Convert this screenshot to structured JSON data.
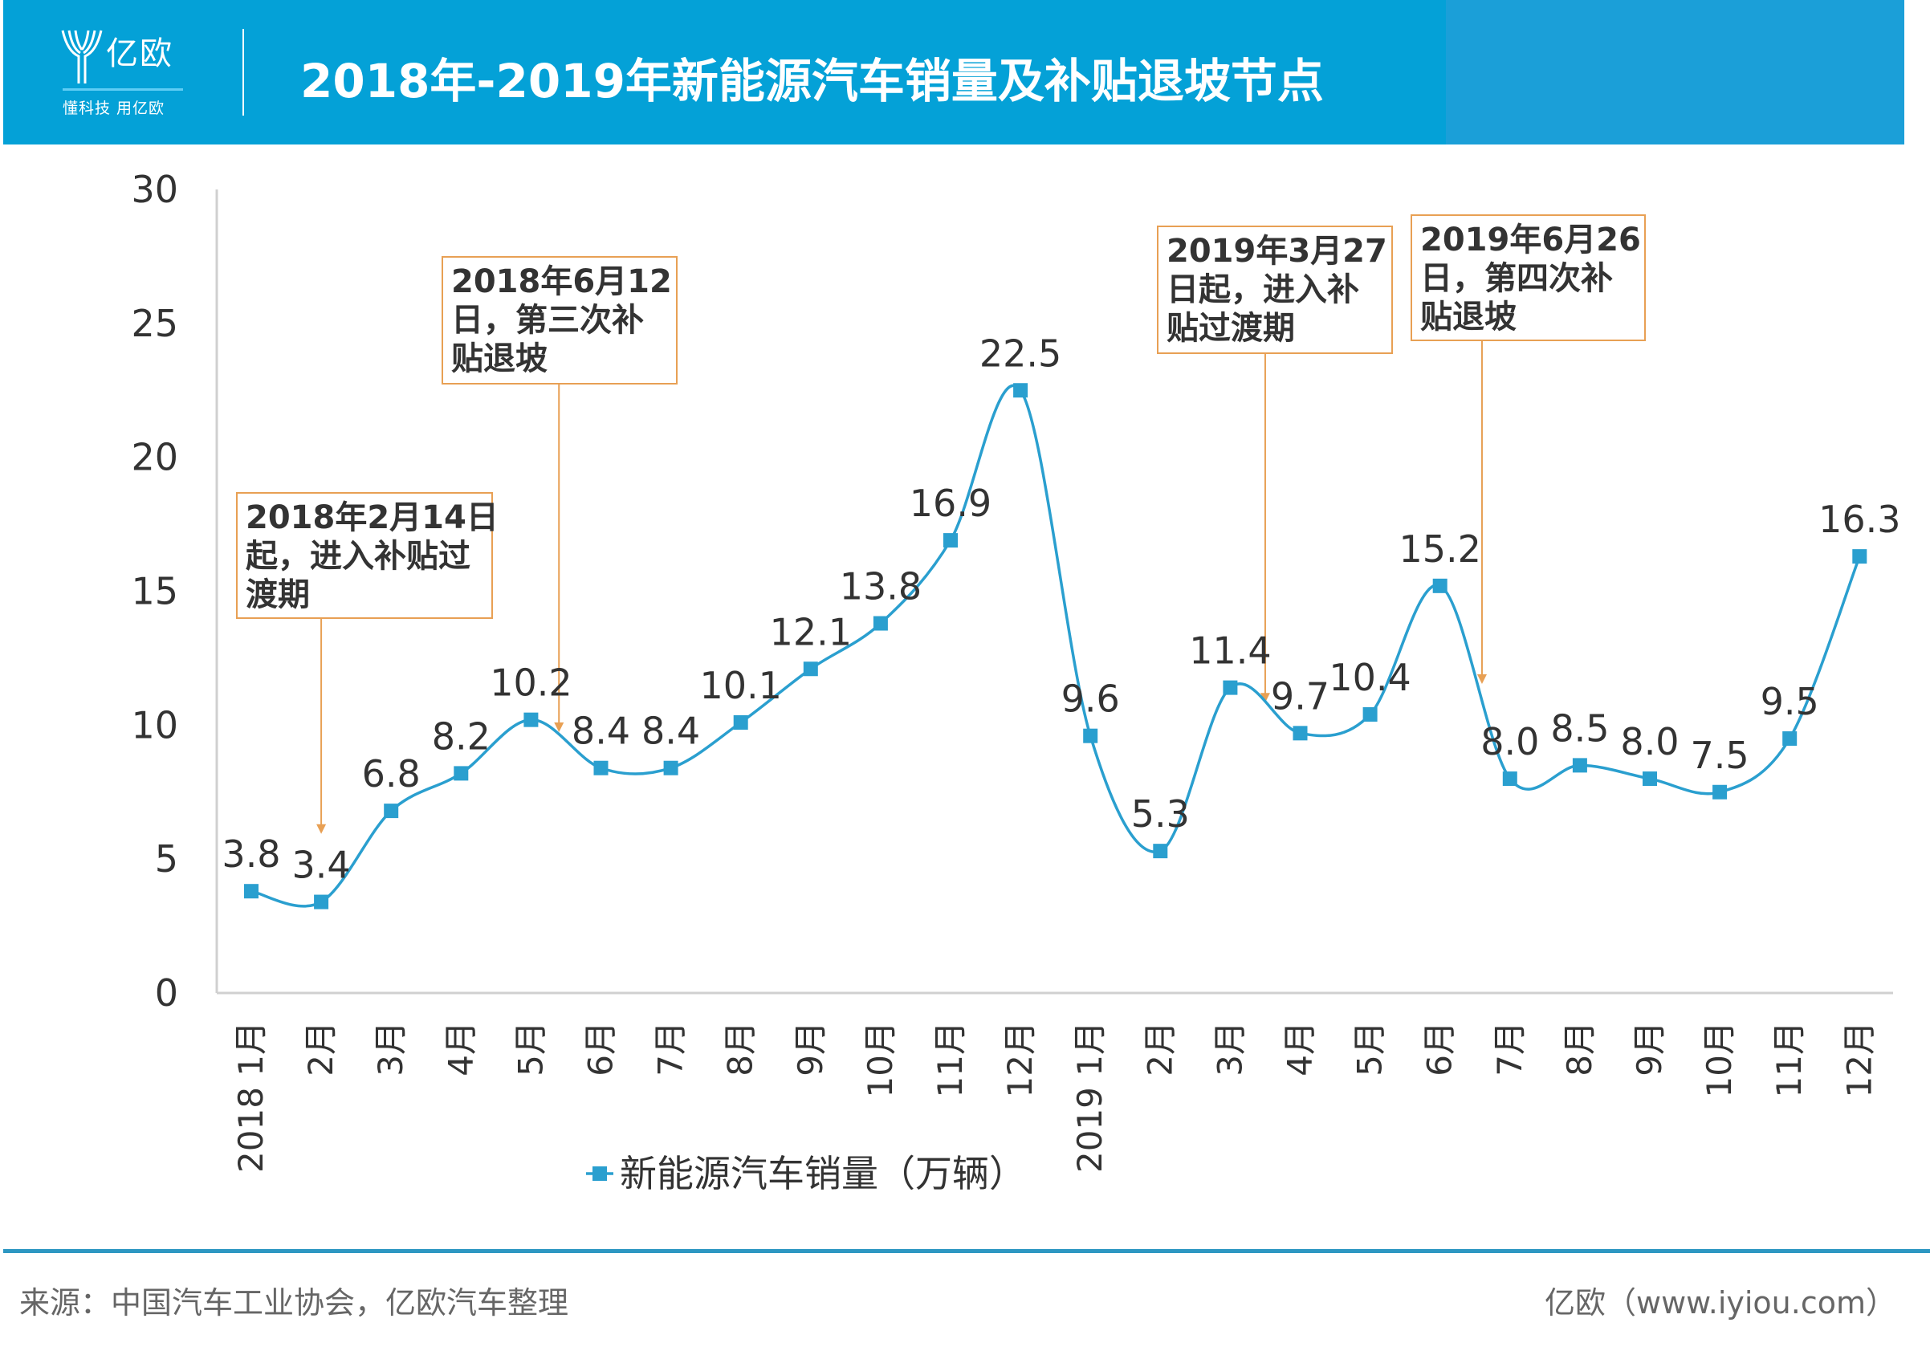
{
  "header": {
    "logo_name": "亿欧",
    "logo_slogan": "懂科技 用亿欧",
    "title": "2018年-2019年新能源汽车销量及补贴退坡节点"
  },
  "colors": {
    "header": "#04a1d7",
    "line": "#2a9fcf",
    "annotation_border": "#e8a054",
    "arrow": "#e8a054"
  },
  "chart_data": {
    "type": "line",
    "title": "2018年-2019年新能源汽车销量及补贴退坡节点",
    "categories": [
      "2018 1月",
      "2月",
      "3月",
      "4月",
      "5月",
      "6月",
      "7月",
      "8月",
      "9月",
      "10月",
      "11月",
      "12月",
      "2019 1月",
      "2月",
      "3月",
      "4月",
      "5月",
      "6月",
      "7月",
      "8月",
      "9月",
      "10月",
      "11月",
      "12月"
    ],
    "series": [
      {
        "name": "新能源汽车销量（万辆）",
        "values": [
          3.8,
          3.4,
          6.8,
          8.2,
          10.2,
          8.4,
          8.4,
          10.1,
          12.1,
          13.8,
          16.9,
          22.5,
          9.6,
          5.3,
          11.4,
          9.7,
          10.4,
          15.2,
          8.0,
          8.5,
          8.0,
          7.5,
          9.5,
          16.3
        ]
      }
    ],
    "data_labels": [
      "3.8",
      "3.4",
      "6.8",
      "8.2",
      "10.2",
      "8.4",
      "8.4",
      "10.1",
      "12.1",
      "13.8",
      "16.9",
      "22.5",
      "9.6",
      "5.3",
      "11.4",
      "9.7",
      "10.4",
      "15.2",
      "8.0",
      "8.5",
      "8.0",
      "7.5",
      "9.5",
      "16.3"
    ],
    "ylim": [
      0,
      30
    ],
    "yticks": [
      "0",
      "5",
      "10",
      "15",
      "20",
      "25",
      "30"
    ],
    "xlabel": "",
    "ylabel": "",
    "grid": false,
    "legend": {
      "label": "新能源汽车销量（万辆）",
      "placement": "bottom"
    },
    "annotations": [
      {
        "lines": [
          "2018年2月14日",
          "起，进入补贴过",
          "渡期"
        ],
        "target_index": 1,
        "target_value": 6
      },
      {
        "lines": [
          "2018年6月12",
          "日，第三次补",
          "贴退坡"
        ],
        "target_index": 4.4,
        "target_value": 9.8
      },
      {
        "lines": [
          "2019年3月27",
          "日起，进入补",
          "贴过渡期"
        ],
        "target_index": 14.5,
        "target_value": 10.9
      },
      {
        "lines": [
          "2019年6月26",
          "日，第四次补",
          "贴退坡"
        ],
        "target_index": 17.6,
        "target_value": 11.6
      }
    ]
  },
  "footer": {
    "source": "来源：中国汽车工业协会，亿欧汽车整理",
    "site": "亿欧（www.iyiou.com）"
  }
}
